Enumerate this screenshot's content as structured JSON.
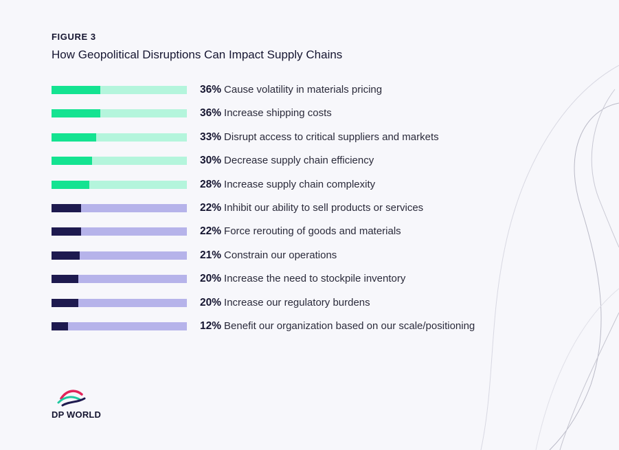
{
  "figure_label": "FIGURE 3",
  "chart_data": {
    "type": "bar",
    "orientation": "horizontal",
    "title": "How Geopolitical Disruptions Can Impact Supply Chains",
    "xlim": [
      0,
      100
    ],
    "categories": [
      "Cause volatility in materials pricing",
      "Increase shipping costs",
      "Disrupt access to critical suppliers and markets",
      "Decrease supply chain efficiency",
      "Increase supply chain complexity",
      "Inhibit our ability to sell products or services",
      "Force rerouting of goods and materials",
      "Constrain our operations",
      "Increase the need to stockpile inventory",
      "Increase our regulatory burdens",
      "Benefit our organization based on our scale/positioning"
    ],
    "values": [
      36,
      36,
      33,
      30,
      28,
      22,
      22,
      21,
      20,
      20,
      12
    ],
    "value_labels": [
      "36%",
      "36%",
      "33%",
      "30%",
      "28%",
      "22%",
      "22%",
      "21%",
      "20%",
      "20%",
      "12%"
    ],
    "color_groups": [
      "top",
      "top",
      "top",
      "top",
      "top",
      "rest",
      "rest",
      "rest",
      "rest",
      "rest",
      "rest"
    ],
    "colors": {
      "top": {
        "fill": "#14e391",
        "track": "#b4f5dc"
      },
      "rest": {
        "fill": "#1e1a4f",
        "track": "#b6b3ea"
      }
    }
  },
  "logo": {
    "text": "DP WORLD"
  }
}
